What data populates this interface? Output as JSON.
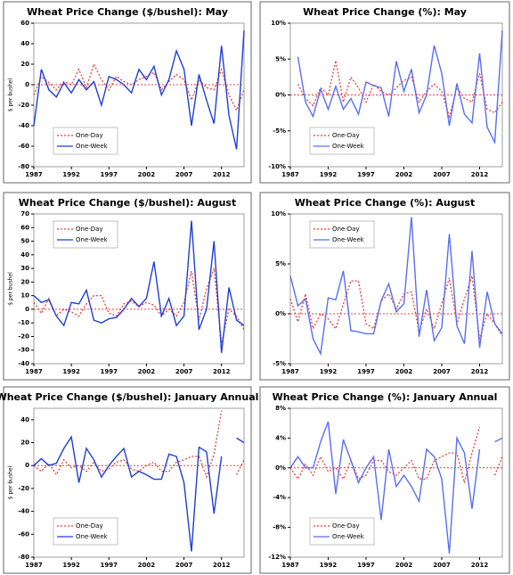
{
  "chart_data": [
    {
      "type": "line",
      "title": "Wheat Price Change ($/bushel): May",
      "ylabel": "$ per bushel",
      "x": [
        1987,
        1988,
        1989,
        1990,
        1991,
        1992,
        1993,
        1994,
        1995,
        1996,
        1997,
        1998,
        1999,
        2000,
        2001,
        2002,
        2003,
        2004,
        2005,
        2006,
        2007,
        2008,
        2009,
        2010,
        2011,
        2012,
        2013,
        2014,
        2015
      ],
      "xlim": [
        1987,
        2015
      ],
      "xticks": [
        1987,
        1992,
        1997,
        2002,
        2007,
        2012
      ],
      "ylim": [
        -80,
        60
      ],
      "yticks": [
        -80,
        -60,
        -40,
        -20,
        0,
        20,
        40,
        60
      ],
      "legend": "lower left",
      "series": [
        {
          "name": "One-Day",
          "color": "#e8403a",
          "values": [
            -10,
            8,
            2,
            -5,
            3,
            0,
            15,
            -3,
            20,
            5,
            -5,
            8,
            3,
            0,
            5,
            8,
            12,
            -5,
            3,
            10,
            5,
            -15,
            5,
            -3,
            -5,
            15,
            -10,
            -25,
            -5
          ]
        },
        {
          "name": "One-Week",
          "color": "#1f3fd6",
          "values": [
            -40,
            15,
            -5,
            -12,
            2,
            -8,
            5,
            -5,
            3,
            -20,
            8,
            5,
            0,
            -8,
            15,
            5,
            18,
            -10,
            5,
            33,
            15,
            -40,
            10,
            -15,
            -38,
            38,
            -30,
            -63,
            53
          ]
        }
      ]
    },
    {
      "type": "line",
      "title": "Wheat Price Change (%): May",
      "x": [
        1987,
        1988,
        1989,
        1990,
        1991,
        1992,
        1993,
        1994,
        1995,
        1996,
        1997,
        1998,
        1999,
        2000,
        2001,
        2002,
        2003,
        2004,
        2005,
        2006,
        2007,
        2008,
        2009,
        2010,
        2011,
        2012,
        2013,
        2014,
        2015
      ],
      "xlim": [
        1987,
        2015
      ],
      "xticks": [
        1987,
        1992,
        1997,
        2002,
        2007,
        2012
      ],
      "ylim": [
        -10,
        10
      ],
      "yticks": [
        {
          "value": -10,
          "label": "-10%"
        },
        {
          "value": -5,
          "label": "-5%"
        },
        {
          "value": 0,
          "label": "0%"
        },
        {
          "value": 5,
          "label": "5%"
        },
        {
          "value": 10,
          "label": "10%"
        }
      ],
      "legend": "lower left",
      "series": [
        {
          "name": "One-Day",
          "color": "#e8403a",
          "values": [
            null,
            1.5,
            -0.5,
            -1.5,
            1,
            0,
            4.8,
            -1,
            2.5,
            1,
            -1,
            1.5,
            0.5,
            0,
            1,
            2,
            2.5,
            -1,
            0.5,
            1.5,
            0.5,
            -3,
            1,
            -0.5,
            -1,
            3,
            -2,
            -2.5,
            -1
          ]
        },
        {
          "name": "One-Week",
          "color": "#5a6ff0",
          "values": [
            null,
            5.3,
            -1,
            -3,
            0.8,
            -2,
            1.2,
            -2,
            -0.5,
            -2.7,
            1.8,
            1.3,
            1,
            -3,
            4.7,
            0.5,
            3.6,
            -2.5,
            0,
            6.9,
            3,
            -4.3,
            1.6,
            -2.7,
            -3.9,
            5.8,
            -4.5,
            -6.6,
            9
          ]
        }
      ]
    },
    {
      "type": "line",
      "title": "Wheat Price Change ($/bushel): August",
      "ylabel": "$ per bushel",
      "x": [
        1987,
        1988,
        1989,
        1990,
        1991,
        1992,
        1993,
        1994,
        1995,
        1996,
        1997,
        1998,
        1999,
        2000,
        2001,
        2002,
        2003,
        2004,
        2005,
        2006,
        2007,
        2008,
        2009,
        2010,
        2011,
        2012,
        2013,
        2014,
        2015
      ],
      "xlim": [
        1987,
        2015
      ],
      "xticks": [
        1987,
        1992,
        1997,
        2002,
        2007,
        2012
      ],
      "ylim": [
        -40,
        70
      ],
      "yticks": [
        -40,
        -30,
        -20,
        -10,
        0,
        10,
        20,
        30,
        40,
        50,
        60,
        70
      ],
      "legend": "upper left",
      "series": [
        {
          "name": "One-Day",
          "color": "#e8403a",
          "values": [
            5,
            -3,
            8,
            -5,
            0,
            -2,
            -5,
            4,
            10,
            10,
            -3,
            -5,
            4,
            6,
            2,
            5,
            3,
            -5,
            0,
            -5,
            5,
            28,
            -8,
            15,
            30,
            -25,
            0,
            -5,
            -15
          ]
        },
        {
          "name": "One-Week",
          "color": "#1f3fd6",
          "values": [
            10,
            5,
            7,
            -5,
            -12,
            5,
            4,
            14,
            -8,
            -10,
            -7,
            -6,
            0,
            8,
            2,
            8,
            35,
            -5,
            8,
            -12,
            -5,
            65,
            -15,
            0,
            50,
            -32,
            16,
            -8,
            -12
          ]
        }
      ]
    },
    {
      "type": "line",
      "title": "Wheat Price Change (%): August",
      "x": [
        1987,
        1988,
        1989,
        1990,
        1991,
        1992,
        1993,
        1994,
        1995,
        1996,
        1997,
        1998,
        1999,
        2000,
        2001,
        2002,
        2003,
        2004,
        2005,
        2006,
        2007,
        2008,
        2009,
        2010,
        2011,
        2012,
        2013,
        2014,
        2015
      ],
      "xlim": [
        1987,
        2015
      ],
      "xticks": [
        1987,
        1992,
        1997,
        2002,
        2007,
        2012
      ],
      "ylim": [
        -5,
        10
      ],
      "yticks": [
        {
          "value": -5,
          "label": "-5%"
        },
        {
          "value": 0,
          "label": "0%"
        },
        {
          "value": 5,
          "label": "5%"
        },
        {
          "value": 10,
          "label": "10%"
        }
      ],
      "legend": "upper left",
      "series": [
        {
          "name": "One-Day",
          "color": "#e8403a",
          "values": [
            1.5,
            -0.8,
            2,
            -1.5,
            0,
            -0.5,
            -1.5,
            1,
            3.3,
            3.3,
            -1,
            -1.5,
            1.3,
            2,
            0.5,
            2,
            2.2,
            -1.8,
            0.5,
            -1.5,
            1,
            3.6,
            -1,
            1.5,
            3.8,
            -2.5,
            0,
            -1,
            -2.2
          ]
        },
        {
          "name": "One-Week",
          "color": "#5a6ff0",
          "values": [
            3.8,
            0.8,
            1.5,
            -2.5,
            -4,
            1.6,
            1.4,
            4.3,
            -1.7,
            -1.8,
            -2,
            -2,
            1.3,
            3,
            0.2,
            1,
            9.7,
            -2.3,
            2.4,
            -2.7,
            -1.4,
            8,
            -1.2,
            -3,
            6.3,
            -3.4,
            2.2,
            -1,
            -2
          ]
        }
      ]
    },
    {
      "type": "line",
      "title": "Wheat Price Change ($/bushel): January Annual",
      "ylabel": "$ per bushel",
      "x": [
        1987,
        1988,
        1989,
        1990,
        1991,
        1992,
        1993,
        1994,
        1995,
        1996,
        1997,
        1998,
        1999,
        2000,
        2001,
        2002,
        2003,
        2004,
        2005,
        2006,
        2007,
        2008,
        2009,
        2010,
        2011,
        2012,
        2013,
        2014,
        2015
      ],
      "xlim": [
        1987,
        2015
      ],
      "xticks": [
        1987,
        1992,
        1997,
        2002,
        2007,
        2012
      ],
      "ylim": [
        -80,
        50
      ],
      "yticks": [
        -80,
        -60,
        -40,
        -20,
        0,
        20,
        40
      ],
      "legend": "lower left",
      "series": [
        {
          "name": "One-Day",
          "color": "#e8403a",
          "values": [
            0,
            -5,
            2,
            -8,
            5,
            -2,
            0,
            -5,
            3,
            -5,
            -3,
            3,
            5,
            -3,
            -5,
            0,
            3,
            -5,
            -5,
            3,
            5,
            8,
            8,
            -10,
            10,
            48,
            null,
            -8,
            5
          ]
        },
        {
          "name": "One-Week",
          "color": "#1f3fd6",
          "values": [
            0,
            6,
            0,
            2,
            15,
            25,
            -15,
            15,
            5,
            -10,
            0,
            8,
            15,
            -10,
            -5,
            -8,
            -12,
            -12,
            10,
            8,
            -15,
            -75,
            16,
            12,
            -42,
            8,
            null,
            24,
            20
          ]
        }
      ]
    },
    {
      "type": "line",
      "title": "Wheat Price Change (%): January Annual",
      "x": [
        1987,
        1988,
        1989,
        1990,
        1991,
        1992,
        1993,
        1994,
        1995,
        1996,
        1997,
        1998,
        1999,
        2000,
        2001,
        2002,
        2003,
        2004,
        2005,
        2006,
        2007,
        2008,
        2009,
        2010,
        2011,
        2012,
        2013,
        2014,
        2015
      ],
      "xlim": [
        1987,
        2015
      ],
      "xticks": [
        1987,
        1992,
        1997,
        2002,
        2007,
        2012
      ],
      "ylim": [
        -12,
        8
      ],
      "yticks": [
        {
          "value": -12,
          "label": "-12%"
        },
        {
          "value": -8,
          "label": "-8%"
        },
        {
          "value": -4,
          "label": "-4%"
        },
        {
          "value": 0,
          "label": "0%"
        },
        {
          "value": 4,
          "label": "4%"
        },
        {
          "value": 8,
          "label": "8%"
        }
      ],
      "legend": "lower left",
      "series": [
        {
          "name": "One-Day",
          "color": "#e8403a",
          "values": [
            0,
            -1.5,
            0.5,
            -1,
            1.5,
            -0.5,
            0,
            -1.5,
            1,
            -1.5,
            -1,
            1,
            1,
            -0.5,
            -1,
            0,
            1,
            -1.5,
            -1.5,
            1,
            1.5,
            2,
            2,
            -2,
            2,
            5.5,
            null,
            -1,
            1.5
          ]
        },
        {
          "name": "One-Week",
          "color": "#5a6ff0",
          "values": [
            0,
            1.5,
            0,
            0,
            3.5,
            6.2,
            -3.5,
            3.8,
            1,
            -2,
            0,
            1.5,
            -7,
            2.5,
            -2.5,
            -1,
            -2.5,
            -4.5,
            2.5,
            1.5,
            -1.5,
            -11.5,
            4,
            2,
            -5.5,
            2.5,
            null,
            3.5,
            4
          ]
        }
      ]
    }
  ]
}
